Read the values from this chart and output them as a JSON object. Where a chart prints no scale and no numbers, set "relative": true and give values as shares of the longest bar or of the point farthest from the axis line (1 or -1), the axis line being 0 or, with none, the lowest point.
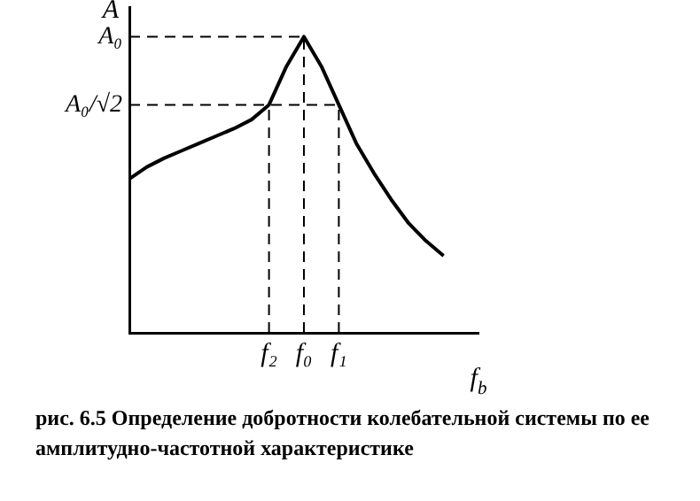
{
  "chart_data": {
    "type": "line",
    "title": "рис. 6.5 Определение добротности колебательной системы по ее амплитудно-частотной характеристике",
    "xlabel": "f$_{b}$",
    "ylabel": "A",
    "categories": [
      null,
      null,
      null,
      null,
      null,
      null,
      null,
      null,
      "f₂",
      null,
      "f₀",
      null,
      "f₁",
      null,
      null,
      null,
      null,
      null,
      null,
      null,
      null
    ],
    "relative": true,
    "series": [
      {
        "color": "#000000",
        "values": [
          0.52,
          0.56,
          0.59,
          0.615,
          0.64,
          0.665,
          0.69,
          0.72,
          0.77,
          0.9,
          1.0,
          0.9,
          0.77,
          0.64,
          0.54,
          0.45,
          0.37,
          0.31,
          0.26,
          null,
          null
        ]
      }
    ],
    "ref_lines": [
      {
        "axis": "x",
        "value": "f₂",
        "line_style": "dashed"
      },
      {
        "axis": "x",
        "value": "f₀",
        "line_style": "dashed"
      },
      {
        "axis": "x",
        "value": "f₁",
        "line_style": "dashed"
      },
      {
        "axis": "y",
        "value": 1.0,
        "label": "A₀",
        "line_style": "dashed"
      },
      {
        "axis": "y",
        "value": 0.77,
        "label": "A₀/√2",
        "line_style": "dashed"
      }
    ],
    "grid": false,
    "legend": false,
    "marker": "none",
    "line_style": "solid"
  }
}
